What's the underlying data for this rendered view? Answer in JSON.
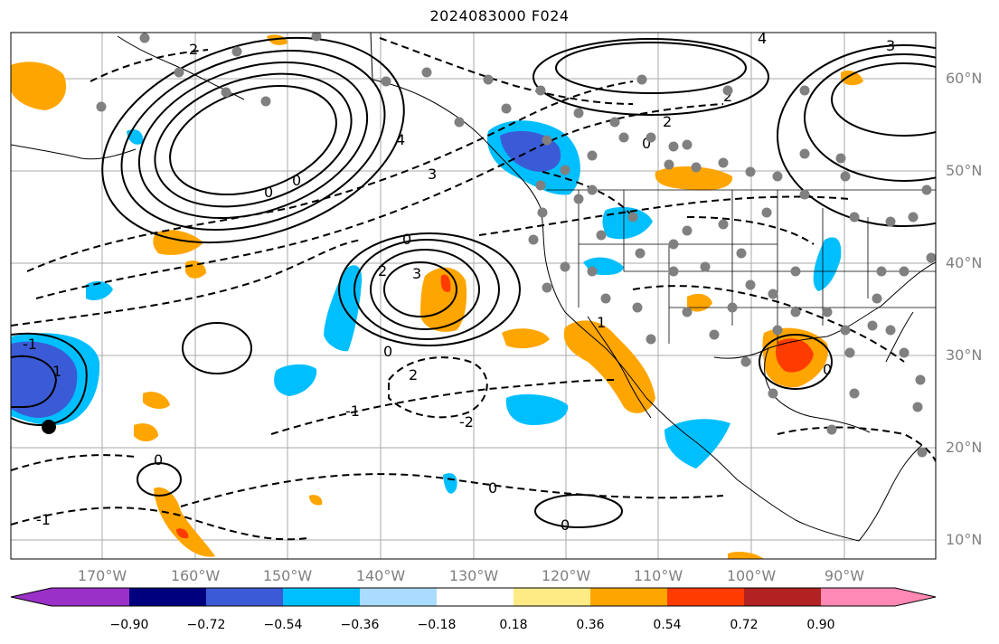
{
  "title": "2024083000 F024",
  "latitude_labels": [
    "60°N",
    "50°N",
    "40°N",
    "30°N",
    "20°N",
    "10°N"
  ],
  "longitude_labels": [
    "170°W",
    "160°W",
    "150°W",
    "140°W",
    "130°W",
    "120°W",
    "110°W",
    "100°W",
    "90°W"
  ],
  "colorbar": {
    "tick_labels": [
      "−0.90",
      "−0.72",
      "−0.54",
      "−0.36",
      "−0.18",
      "0.18",
      "0.36",
      "0.54",
      "0.72",
      "0.90"
    ],
    "colors": [
      "#9b30c9",
      "#00007f",
      "#3b5bd6",
      "#00bfff",
      "#aadcff",
      "#ffffff",
      "#ffeb85",
      "#ffa500",
      "#ff3c00",
      "#b22222",
      "#ff88b4"
    ]
  },
  "contour_labels": {
    "alaska_high": [
      "0",
      "0",
      "2"
    ],
    "gulf_low": [
      "4",
      "3"
    ],
    "pacific_high": [
      "2",
      "3",
      "0"
    ],
    "northeast": [
      "4",
      "2",
      "0",
      "2",
      "3"
    ],
    "subtropics": [
      "-1",
      "-2",
      "-1",
      "0",
      "0",
      "0",
      "0",
      "1",
      "-1",
      "2"
    ],
    "california": [
      "1"
    ],
    "texas": [
      "0"
    ]
  },
  "fill_colors": {
    "negative_weak": "#00bfff",
    "negative_strong": "#3b5bd6",
    "positive": "#ffa500",
    "positive_strong": "#ff3c00"
  },
  "station_color": "#808080",
  "marker_color": "#000000"
}
